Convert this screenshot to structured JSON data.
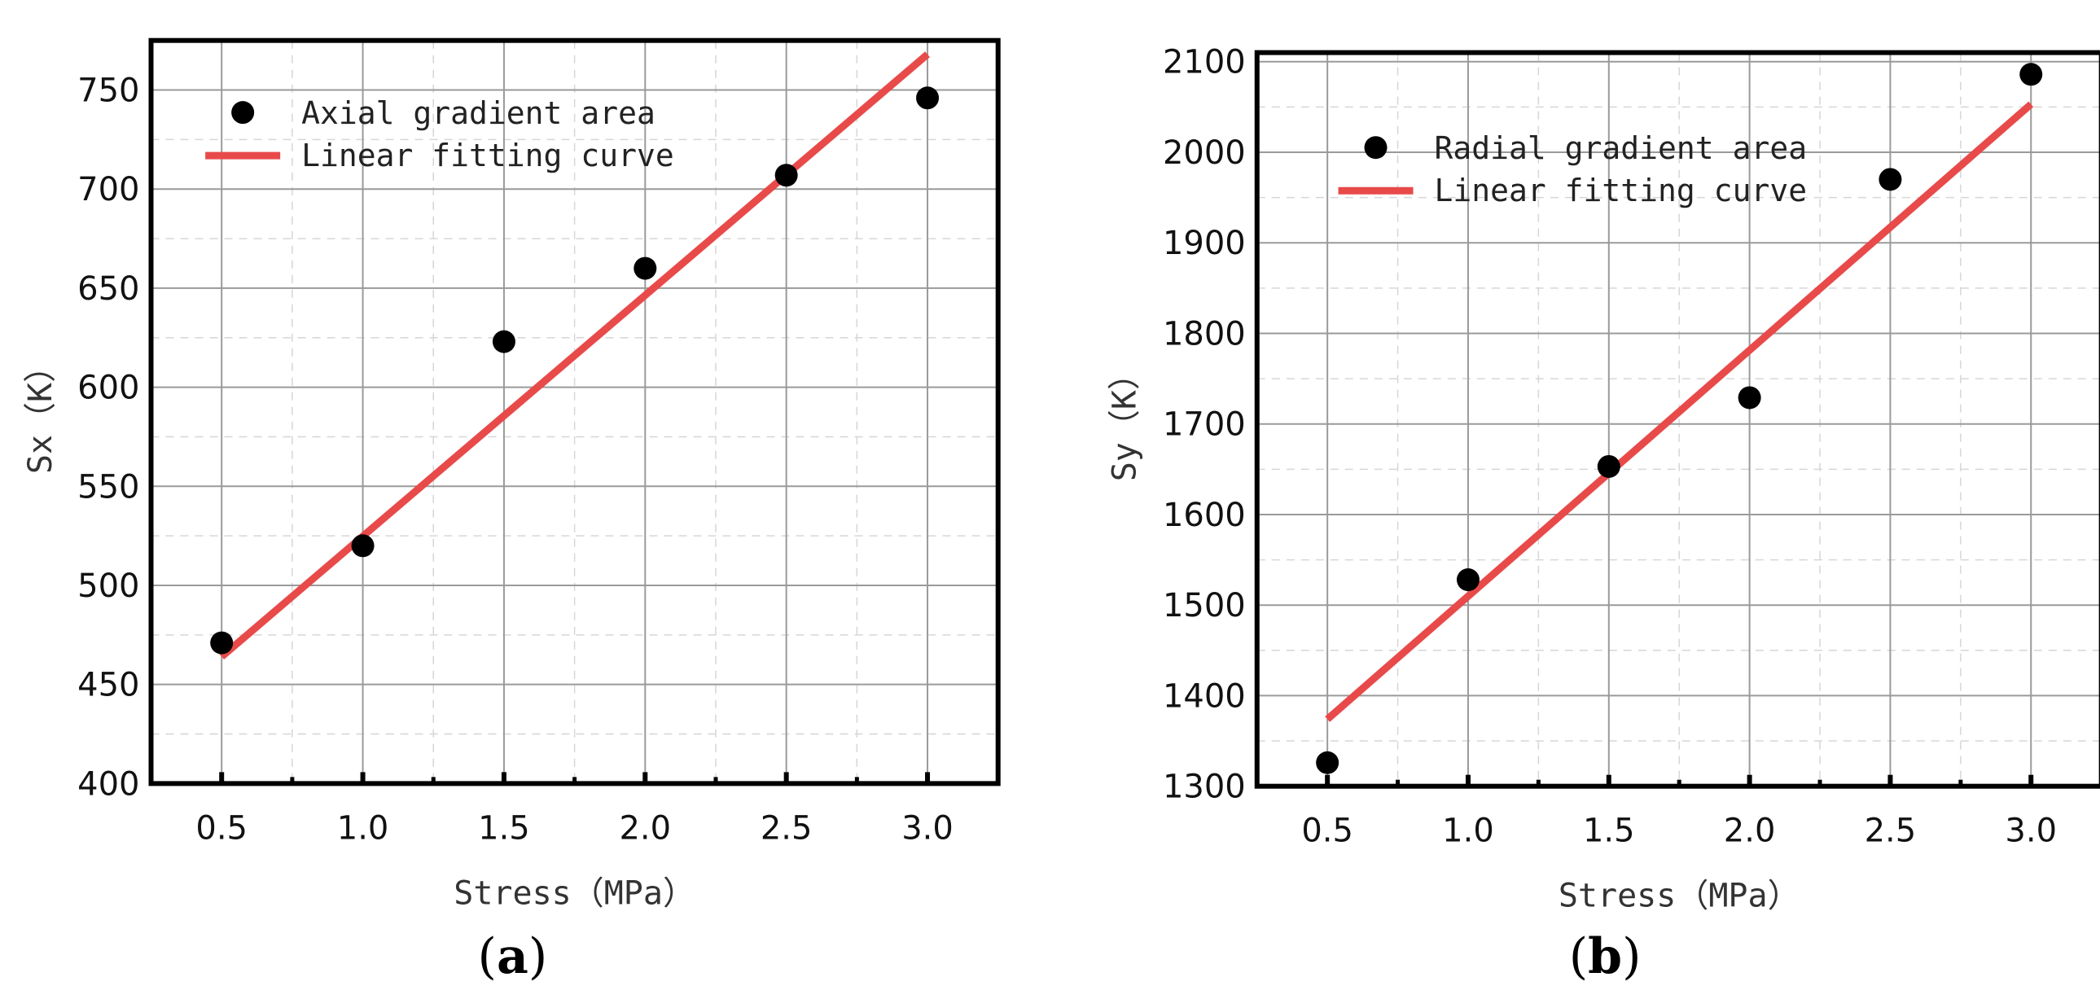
{
  "chart_data": [
    {
      "type": "scatter",
      "panel_label": {
        "open": "(",
        "letter": "a",
        "close": ")"
      },
      "xlabel": "Stress（MPa）",
      "ylabel": "Sx（K）",
      "xlim": [
        0.25,
        3.25
      ],
      "ylim": [
        400,
        775
      ],
      "xticks": [
        "0.5",
        "1.0",
        "1.5",
        "2.0",
        "2.5",
        "3.0"
      ],
      "xtick_values": [
        0.5,
        1.0,
        1.5,
        2.0,
        2.5,
        3.0
      ],
      "yticks": [
        "400",
        "450",
        "500",
        "550",
        "600",
        "650",
        "700",
        "750"
      ],
      "ytick_values": [
        400,
        450,
        500,
        550,
        600,
        650,
        700,
        750
      ],
      "grid": true,
      "legend_position": "top-left",
      "series": [
        {
          "name": "Axial gradient area",
          "kind": "points",
          "color": "#000000",
          "x": [
            0.5,
            1.0,
            1.5,
            2.0,
            2.5,
            3.0
          ],
          "y": [
            471,
            520,
            623,
            660,
            707,
            746
          ]
        },
        {
          "name": "Linear fitting curve",
          "kind": "line",
          "color": "#e84a4a",
          "x": [
            0.5,
            3.0
          ],
          "y": [
            464,
            768
          ]
        }
      ]
    },
    {
      "type": "scatter",
      "panel_label": {
        "open": "(",
        "letter": "b",
        "close": ")"
      },
      "xlabel": "Stress（MPa）",
      "ylabel": "Sy（K）",
      "xlim": [
        0.25,
        3.25
      ],
      "ylim": [
        1300,
        2110
      ],
      "xticks": [
        "0.5",
        "1.0",
        "1.5",
        "2.0",
        "2.5",
        "3.0"
      ],
      "xtick_values": [
        0.5,
        1.0,
        1.5,
        2.0,
        2.5,
        3.0
      ],
      "yticks": [
        "1300",
        "1400",
        "1500",
        "1600",
        "1700",
        "1800",
        "1900",
        "2000",
        "2100"
      ],
      "ytick_values": [
        1300,
        1400,
        1500,
        1600,
        1700,
        1800,
        1900,
        2000,
        2100
      ],
      "grid": true,
      "legend_position": "top-left",
      "series": [
        {
          "name": "Radial gradient area",
          "kind": "points",
          "color": "#000000",
          "x": [
            0.5,
            1.0,
            1.5,
            2.0,
            2.5,
            3.0
          ],
          "y": [
            1326,
            1528,
            1653,
            1729,
            1970,
            2086
          ]
        },
        {
          "name": "Linear fitting curve",
          "kind": "line",
          "color": "#e84a4a",
          "x": [
            0.5,
            3.0
          ],
          "y": [
            1374,
            2053
          ]
        }
      ]
    }
  ]
}
